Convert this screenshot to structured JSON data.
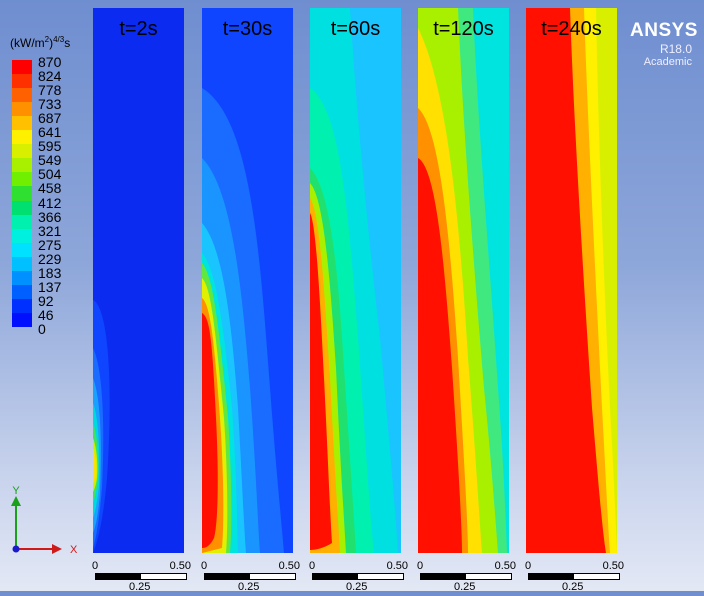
{
  "legend": {
    "title_text": "(kW/m",
    "title_sup1": "2",
    "title_mid": ")",
    "title_sup2": "4/3",
    "title_end": "s",
    "ticks": [
      "870",
      "824",
      "778",
      "733",
      "687",
      "641",
      "595",
      "549",
      "504",
      "458",
      "412",
      "366",
      "321",
      "275",
      "229",
      "183",
      "137",
      "92",
      "46",
      "0"
    ],
    "colors": [
      "#ff0000",
      "#ff3000",
      "#ff6000",
      "#ff9000",
      "#ffc000",
      "#fff000",
      "#d8f000",
      "#a8f000",
      "#70f000",
      "#30e030",
      "#00e070",
      "#00f0b0",
      "#00f0e0",
      "#00e0ff",
      "#00c0ff",
      "#0090ff",
      "#0060ff",
      "#0030ff",
      "#0010ff"
    ]
  },
  "panels": [
    {
      "title": "t=2s"
    },
    {
      "title": "t=30s"
    },
    {
      "title": "t=60s"
    },
    {
      "title": "t=120s"
    },
    {
      "title": "t=240s"
    }
  ],
  "scale": {
    "start": "0",
    "end": "0.50",
    "mid": "0.25"
  },
  "brand": {
    "name": "ANSYS",
    "version": "R18.0",
    "edition": "Academic"
  },
  "axes": {
    "y": "Y",
    "x": "X"
  }
}
